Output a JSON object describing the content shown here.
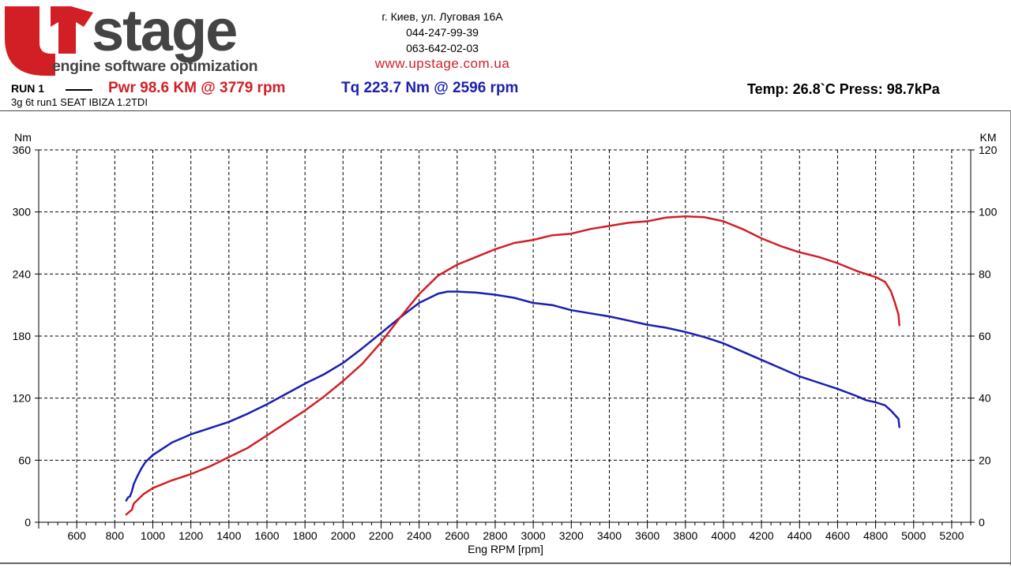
{
  "brand": {
    "logo_text": "stage",
    "logo_initial": "U",
    "tagline": "engine software optimization",
    "red": "#d21f26",
    "dark": "#444444"
  },
  "contact": {
    "address": "г. Киев, ул. Луговая 16А",
    "phone1": "044-247-99-39",
    "phone2": "063-642-02-03",
    "website": "www.upstage.com.ua"
  },
  "run": {
    "label": "RUN 1",
    "power_summary": "Pwr  98.6 KM @ 3779 rpm",
    "torque_summary": "Tq 223.7 Nm @ 2596 rpm",
    "environment": "Temp: 26.8`C    Press: 98.7kPa",
    "subtitle": "3g 6t run1 SEAT IBIZA 1.2TDI"
  },
  "chart_data": {
    "type": "line",
    "xlabel": "Eng RPM [rpm]",
    "ylabel": "Nm",
    "y2label": "KM",
    "xlim": [
      400,
      5300
    ],
    "ylim": [
      0,
      360
    ],
    "y2lim": [
      0,
      120
    ],
    "x_ticks": [
      600,
      800,
      1000,
      1200,
      1400,
      1600,
      1800,
      2000,
      2200,
      2400,
      2600,
      2800,
      3000,
      3200,
      3400,
      3600,
      3800,
      4000,
      4200,
      4400,
      4600,
      4800,
      5000,
      5200
    ],
    "y_ticks": [
      0,
      60,
      120,
      180,
      240,
      300,
      360
    ],
    "y2_ticks": [
      0,
      20,
      40,
      60,
      80,
      100,
      120
    ],
    "grid": true,
    "grid_style": "dashed",
    "series": [
      {
        "axis": "left",
        "color": "#1a1fb0",
        "x": [
          860,
          870,
          880,
          890,
          900,
          920,
          940,
          960,
          1000,
          1050,
          1100,
          1200,
          1300,
          1400,
          1500,
          1600,
          1700,
          1800,
          1900,
          2000,
          2100,
          2200,
          2300,
          2400,
          2500,
          2550,
          2600,
          2700,
          2800,
          2900,
          3000,
          3100,
          3200,
          3300,
          3400,
          3500,
          3600,
          3700,
          3800,
          3900,
          4000,
          4100,
          4200,
          4300,
          4400,
          4500,
          4600,
          4700,
          4750,
          4800,
          4850,
          4880,
          4900,
          4920,
          4925
        ],
        "values": [
          21,
          24,
          25,
          30,
          37,
          45,
          52,
          58,
          65,
          71,
          77,
          85,
          91,
          97,
          105,
          114,
          124,
          134,
          143,
          154,
          168,
          183,
          198,
          212,
          221,
          223,
          223,
          222,
          220,
          217,
          212,
          210,
          205,
          202,
          199,
          195,
          191,
          188,
          184,
          179,
          173,
          165,
          157,
          149,
          141,
          135,
          129,
          122,
          118,
          116,
          113,
          108,
          104,
          100,
          92
        ]
      },
      {
        "axis": "right",
        "color": "#d21f26",
        "x": [
          860,
          870,
          880,
          890,
          900,
          950,
          1000,
          1100,
          1200,
          1300,
          1400,
          1500,
          1600,
          1700,
          1800,
          1900,
          2000,
          2100,
          2200,
          2300,
          2400,
          2500,
          2600,
          2700,
          2800,
          2900,
          3000,
          3100,
          3200,
          3300,
          3400,
          3500,
          3600,
          3700,
          3800,
          3900,
          4000,
          4100,
          4200,
          4300,
          4400,
          4500,
          4600,
          4700,
          4800,
          4850,
          4880,
          4900,
          4920,
          4925
        ],
        "values": [
          2.5,
          3,
          3.5,
          4,
          6,
          9,
          11,
          13.5,
          15.5,
          18,
          21,
          24,
          28,
          32,
          36,
          40.5,
          45.5,
          51,
          58,
          66,
          73.5,
          79.5,
          83,
          85.5,
          88,
          90,
          91,
          92.5,
          93,
          94.5,
          95.5,
          96.5,
          97,
          98.2,
          98.6,
          98.3,
          97,
          94.5,
          91.5,
          89,
          87,
          85.5,
          83.5,
          81,
          79,
          77.5,
          74.5,
          71,
          67,
          63.5
        ]
      }
    ]
  }
}
